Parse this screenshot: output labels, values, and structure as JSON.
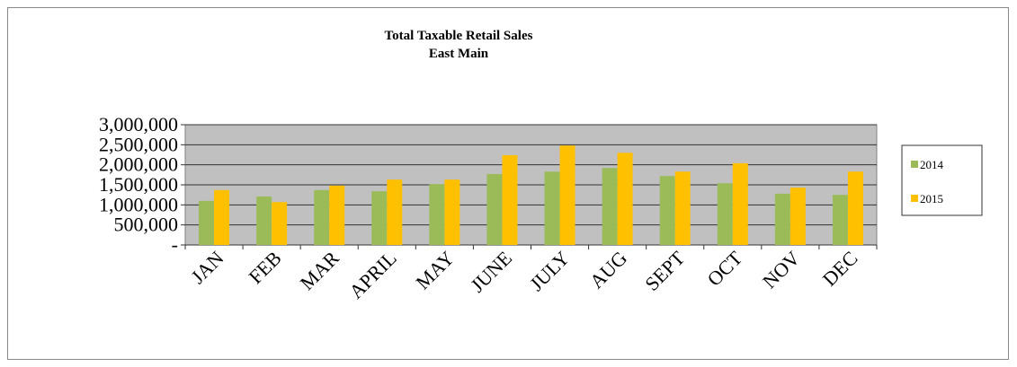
{
  "chart_data": {
    "type": "bar",
    "title": "Total Taxable Retail Sales",
    "subtitle": "East Main",
    "categories": [
      "JAN",
      "FEB",
      "MAR",
      "APRIL",
      "MAY",
      "JUNE",
      "JULY",
      "AUG",
      "SEPT",
      "OCT",
      "NOV",
      "DEC"
    ],
    "series": [
      {
        "name": "2014",
        "color": "#9bbb59",
        "values": [
          1100000,
          1210000,
          1370000,
          1340000,
          1520000,
          1770000,
          1830000,
          1920000,
          1720000,
          1540000,
          1280000,
          1250000
        ]
      },
      {
        "name": "2015",
        "color": "#ffc000",
        "values": [
          1370000,
          1070000,
          1480000,
          1630000,
          1630000,
          2240000,
          2480000,
          2300000,
          1830000,
          2040000,
          1430000,
          1830000
        ]
      }
    ],
    "ylim": [
      0,
      3000000
    ],
    "yticks": [
      {
        "value": 0,
        "label": "-"
      },
      {
        "value": 500000,
        "label": "500,000"
      },
      {
        "value": 1000000,
        "label": "1,000,000"
      },
      {
        "value": 1500000,
        "label": "1,500,000"
      },
      {
        "value": 2000000,
        "label": "2,000,000"
      },
      {
        "value": 2500000,
        "label": "2,500,000"
      },
      {
        "value": 3000000,
        "label": "3,000,000"
      }
    ],
    "grid": true,
    "legend": "right"
  }
}
